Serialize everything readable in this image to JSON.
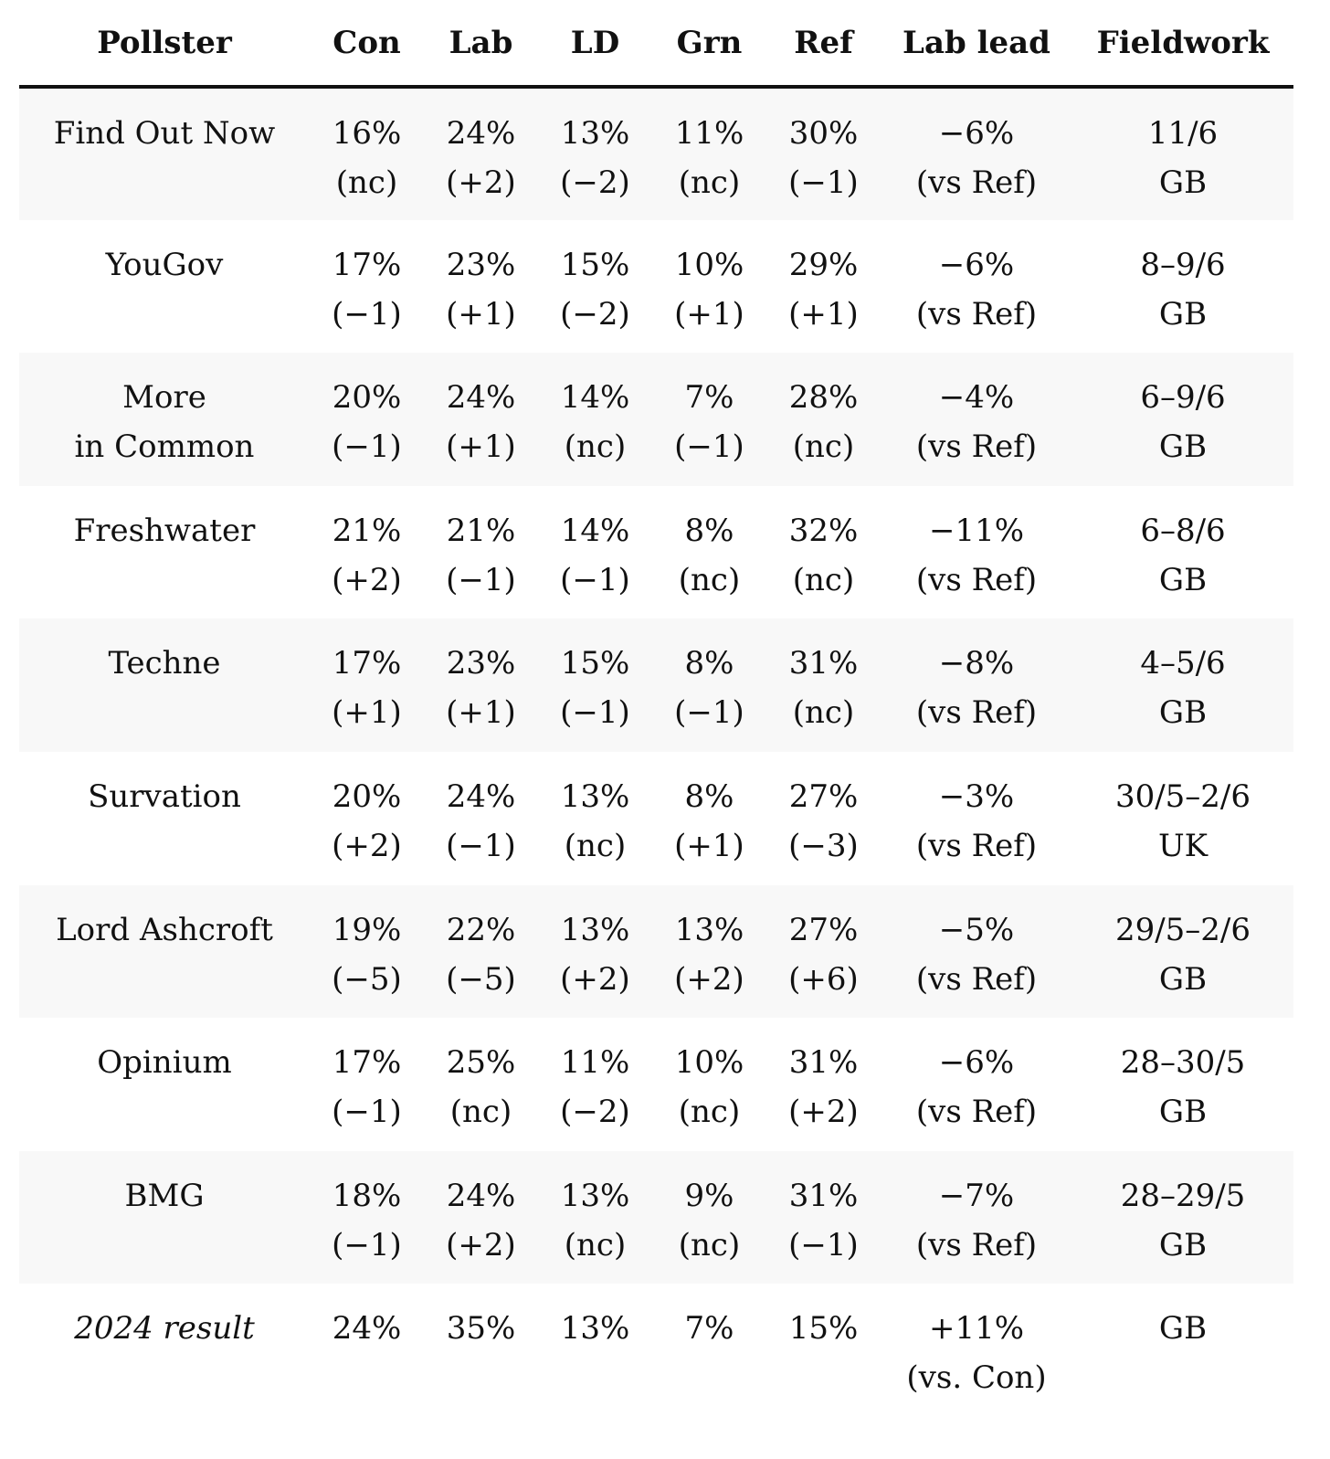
{
  "headers": [
    "Pollster",
    "Con",
    "Lab",
    "LD",
    "Grn",
    "Ref",
    "Lab lead",
    "Fieldwork"
  ],
  "rows": [
    {
      "pollster": [
        "Find Out Now",
        ""
      ],
      "con": [
        "16%",
        "(nc)"
      ],
      "lab": [
        "24%",
        "(+2)"
      ],
      "ld": [
        "13%",
        "(−2)"
      ],
      "grn": [
        "11%",
        "(nc)"
      ],
      "ref": [
        "30%",
        "(−1)"
      ],
      "lead": [
        "−6%",
        "(vs Ref)"
      ],
      "fieldwork": [
        "11/6",
        "GB"
      ]
    },
    {
      "pollster": [
        "YouGov",
        ""
      ],
      "con": [
        "17%",
        "(−1)"
      ],
      "lab": [
        "23%",
        "(+1)"
      ],
      "ld": [
        "15%",
        "(−2)"
      ],
      "grn": [
        "10%",
        "(+1)"
      ],
      "ref": [
        "29%",
        "(+1)"
      ],
      "lead": [
        "−6%",
        "(vs Ref)"
      ],
      "fieldwork": [
        "8–9/6",
        "GB"
      ]
    },
    {
      "pollster": [
        "More",
        "in Common"
      ],
      "con": [
        "20%",
        "(−1)"
      ],
      "lab": [
        "24%",
        "(+1)"
      ],
      "ld": [
        "14%",
        "(nc)"
      ],
      "grn": [
        "7%",
        "(−1)"
      ],
      "ref": [
        "28%",
        "(nc)"
      ],
      "lead": [
        "−4%",
        "(vs Ref)"
      ],
      "fieldwork": [
        "6–9/6",
        "GB"
      ]
    },
    {
      "pollster": [
        "Freshwater",
        ""
      ],
      "con": [
        "21%",
        "(+2)"
      ],
      "lab": [
        "21%",
        "(−1)"
      ],
      "ld": [
        "14%",
        "(−1)"
      ],
      "grn": [
        "8%",
        "(nc)"
      ],
      "ref": [
        "32%",
        "(nc)"
      ],
      "lead": [
        "−11%",
        "(vs Ref)"
      ],
      "fieldwork": [
        "6–8/6",
        "GB"
      ]
    },
    {
      "pollster": [
        "Techne",
        ""
      ],
      "con": [
        "17%",
        "(+1)"
      ],
      "lab": [
        "23%",
        "(+1)"
      ],
      "ld": [
        "15%",
        "(−1)"
      ],
      "grn": [
        "8%",
        "(−1)"
      ],
      "ref": [
        "31%",
        "(nc)"
      ],
      "lead": [
        "−8%",
        "(vs Ref)"
      ],
      "fieldwork": [
        "4–5/6",
        "GB"
      ]
    },
    {
      "pollster": [
        "Survation",
        ""
      ],
      "con": [
        "20%",
        "(+2)"
      ],
      "lab": [
        "24%",
        "(−1)"
      ],
      "ld": [
        "13%",
        "(nc)"
      ],
      "grn": [
        "8%",
        "(+1)"
      ],
      "ref": [
        "27%",
        "(−3)"
      ],
      "lead": [
        "−3%",
        "(vs Ref)"
      ],
      "fieldwork": [
        "30/5–2/6",
        "UK"
      ]
    },
    {
      "pollster": [
        "Lord Ashcroft",
        ""
      ],
      "con": [
        "19%",
        "(−5)"
      ],
      "lab": [
        "22%",
        "(−5)"
      ],
      "ld": [
        "13%",
        "(+2)"
      ],
      "grn": [
        "13%",
        "(+2)"
      ],
      "ref": [
        "27%",
        "(+6)"
      ],
      "lead": [
        "−5%",
        "(vs Ref)"
      ],
      "fieldwork": [
        "29/5–2/6",
        "GB"
      ]
    },
    {
      "pollster": [
        "Opinium",
        ""
      ],
      "con": [
        "17%",
        "(−1)"
      ],
      "lab": [
        "25%",
        "(nc)"
      ],
      "ld": [
        "11%",
        "(−2)"
      ],
      "grn": [
        "10%",
        "(nc)"
      ],
      "ref": [
        "31%",
        "(+2)"
      ],
      "lead": [
        "−6%",
        "(vs Ref)"
      ],
      "fieldwork": [
        "28–30/5",
        "GB"
      ]
    },
    {
      "pollster": [
        "BMG",
        ""
      ],
      "con": [
        "18%",
        "(−1)"
      ],
      "lab": [
        "24%",
        "(+2)"
      ],
      "ld": [
        "13%",
        "(nc)"
      ],
      "grn": [
        "9%",
        "(nc)"
      ],
      "ref": [
        "31%",
        "(−1)"
      ],
      "lead": [
        "−7%",
        "(vs Ref)"
      ],
      "fieldwork": [
        "28–29/5",
        "GB"
      ]
    }
  ],
  "result": {
    "pollster": "2024 result",
    "con": "24%",
    "lab": "35%",
    "ld": "13%",
    "grn": "7%",
    "ref": "15%",
    "lead": [
      "+11%",
      "(vs. Con)"
    ],
    "fieldwork": "GB"
  }
}
